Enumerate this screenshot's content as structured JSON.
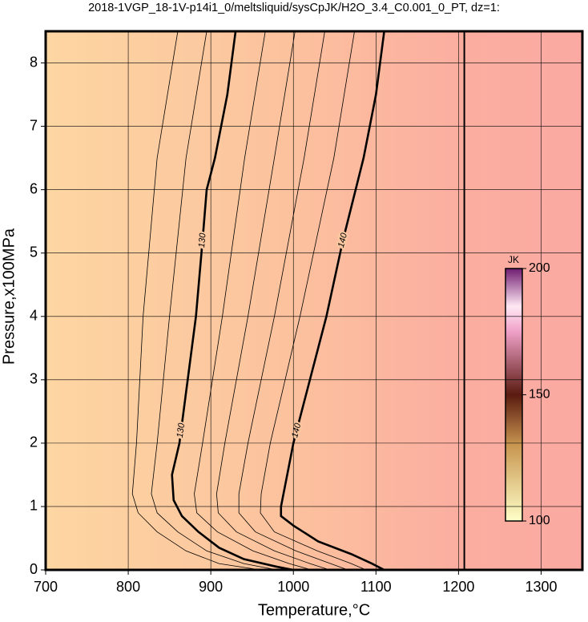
{
  "chart_data": {
    "type": "contour",
    "title": "2018-1VGP_18-1V-p14i1_0/meltsliquid/sysCpJK/H2O_3.4_C0.001_0_PT, dz=1:",
    "xlabel": "Temperature,°C",
    "ylabel": "Pressure,x100MPa",
    "xlim": [
      700,
      1350
    ],
    "ylim": [
      0,
      8.5
    ],
    "xticks": [
      700,
      800,
      900,
      1000,
      1100,
      1200,
      1300
    ],
    "yticks": [
      0,
      1,
      2,
      3,
      4,
      5,
      6,
      7,
      8
    ],
    "grid": true,
    "contours": [
      {
        "level": 126,
        "x": [
          860,
          835,
          818,
          810,
          805,
          812,
          835,
          870,
          910,
          960
        ],
        "y": [
          8.5,
          6.5,
          4,
          2,
          1.2,
          0.9,
          0.6,
          0.3,
          0.1,
          0
        ]
      },
      {
        "level": 128,
        "x": [
          895,
          870,
          850,
          835,
          828,
          835,
          860,
          895,
          940,
          980
        ],
        "y": [
          8.5,
          6.5,
          4,
          2,
          1.2,
          0.9,
          0.6,
          0.3,
          0.1,
          0
        ]
      },
      {
        "level": 130,
        "label": "130",
        "x": [
          930,
          920,
          905,
          895,
          890,
          882,
          872,
          862,
          853,
          855,
          865,
          885,
          910,
          940,
          980,
          1000
        ],
        "y": [
          8.5,
          7.5,
          6.5,
          6,
          5.2,
          4,
          3,
          2,
          1.5,
          1.1,
          0.85,
          0.6,
          0.35,
          0.17,
          0.05,
          0
        ]
      },
      {
        "level": 132,
        "x": [
          966,
          941,
          914,
          890,
          880,
          883,
          908,
          951,
          995,
          1022
        ],
        "y": [
          8.5,
          6.5,
          4,
          2,
          1.2,
          0.9,
          0.6,
          0.3,
          0.1,
          0
        ]
      },
      {
        "level": 134,
        "x": [
          1002,
          977,
          945,
          917,
          907,
          909,
          931,
          977,
          1020,
          1044
        ],
        "y": [
          8.5,
          6.5,
          4,
          2,
          1.2,
          0.9,
          0.6,
          0.3,
          0.1,
          0
        ]
      },
      {
        "level": 136,
        "x": [
          1038,
          1013,
          977,
          945,
          934,
          934,
          954,
          1003,
          1045,
          1066
        ],
        "y": [
          8.5,
          6.5,
          4,
          2,
          1.2,
          0.9,
          0.6,
          0.3,
          0.1,
          0
        ]
      },
      {
        "level": 138,
        "x": [
          1074,
          1049,
          1008,
          972,
          961,
          960,
          977,
          1029,
          1070,
          1088
        ],
        "y": [
          8.5,
          6.5,
          4,
          2,
          1.2,
          0.9,
          0.6,
          0.3,
          0.1,
          0
        ]
      },
      {
        "level": 140,
        "label": "140",
        "x": [
          1110,
          1100,
          1085,
          1060,
          1040,
          1020,
          1000,
          985,
          985,
          1000,
          1030,
          1070,
          1095,
          1110
        ],
        "y": [
          8.5,
          7.5,
          6.5,
          5.2,
          4,
          3,
          2,
          1,
          0.85,
          0.7,
          0.45,
          0.25,
          0.1,
          0
        ]
      }
    ],
    "boundary": {
      "x": [
        1207,
        1207
      ],
      "y": [
        0,
        8.5
      ]
    },
    "colorbar": {
      "label": "JK",
      "lim": [
        100,
        200
      ],
      "ticks": [
        100,
        150,
        200
      ]
    }
  }
}
